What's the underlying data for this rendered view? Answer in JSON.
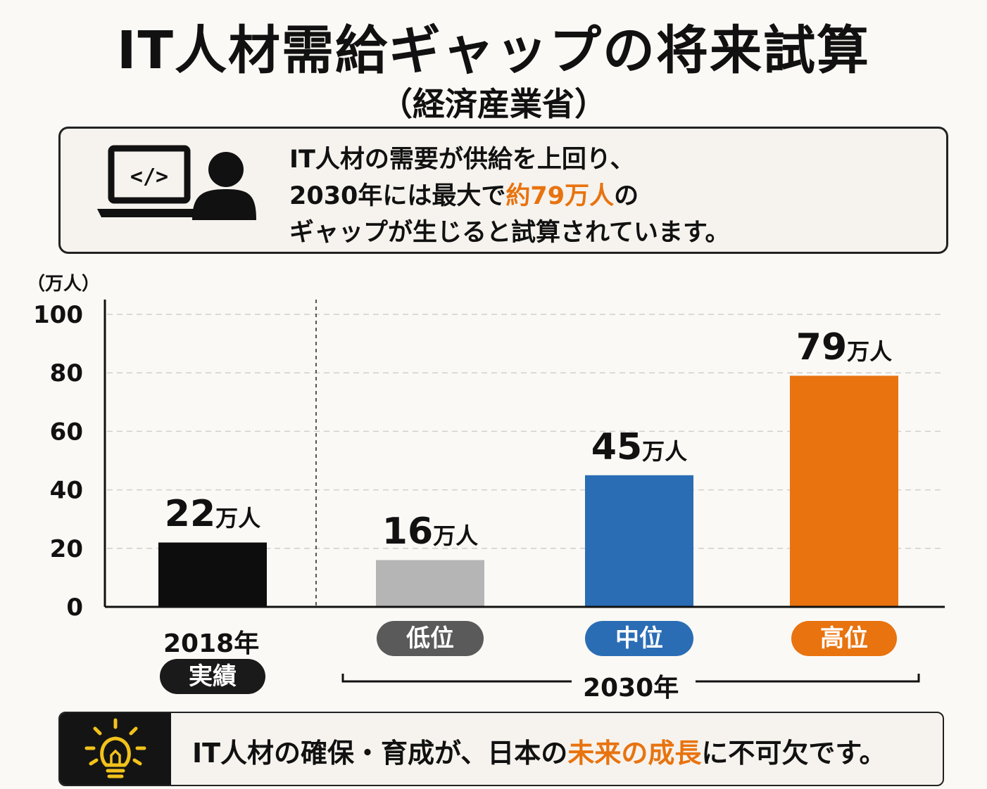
{
  "header": {
    "title": "IT人材需給ギャップの将来試算",
    "subtitle": "（経済産業省）"
  },
  "info": {
    "line1": "IT人材の需要が供給を上回り、",
    "line2_a": "2030年には最大で",
    "line2_hl": "約79万人",
    "line2_b": "の",
    "line3": "ギャップが生じると試算されています。",
    "icons": [
      "laptop-code-icon",
      "person-icon"
    ],
    "highlight_color": "#e8730f"
  },
  "chart_data": {
    "type": "bar",
    "categories": [
      "実績",
      "低位",
      "中位",
      "高位"
    ],
    "values": [
      22,
      16,
      45,
      79
    ],
    "value_labels": [
      {
        "num": "22",
        "unit": "万人"
      },
      {
        "num": "16",
        "unit": "万人"
      },
      {
        "num": "45",
        "unit": "万人"
      },
      {
        "num": "79",
        "unit": "万人"
      }
    ],
    "colors": [
      "#0d0d0d",
      "#b5b5b5",
      "#2a6db5",
      "#e8730f"
    ],
    "pill_colors": [
      "#1a1a1a",
      "#5a5a5a",
      "#2a6db5",
      "#e8730f"
    ],
    "group_labels": [
      "2018年",
      "2030年"
    ],
    "ylabel": "（万人）",
    "ylim": [
      0,
      100
    ],
    "yticks": [
      "0",
      "20",
      "40",
      "60",
      "80",
      "100"
    ],
    "grid": true
  },
  "footer": {
    "text_a": "IT人材の確保・育成が、日本の",
    "text_hl": "未来の成長",
    "text_b": "に不可欠です。",
    "icon": "lightbulb-icon",
    "icon_color": "#f2c21b"
  }
}
